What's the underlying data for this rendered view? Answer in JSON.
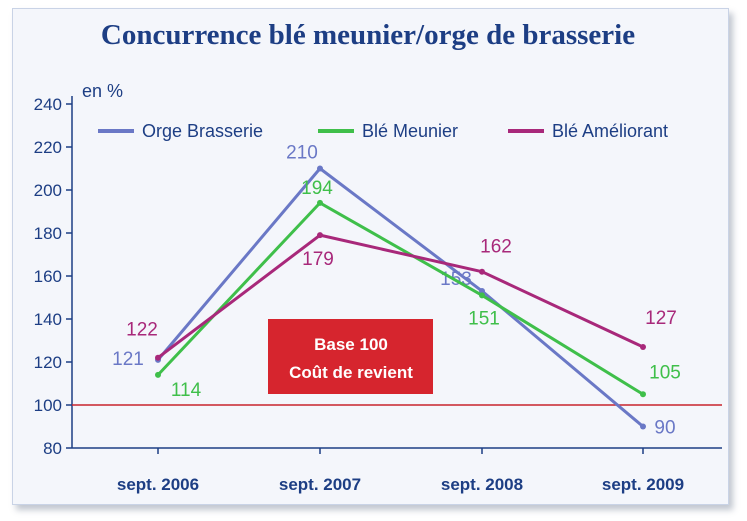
{
  "chart_data": {
    "type": "line",
    "title": "Concurrence blé meunier/orge de brasserie",
    "unit_label": "en %",
    "categories": [
      "sept. 2006",
      "sept. 2007",
      "sept. 2008",
      "sept. 2009"
    ],
    "yticks": [
      80,
      100,
      120,
      140,
      160,
      180,
      200,
      220,
      240
    ],
    "ylim": [
      80,
      240
    ],
    "series": [
      {
        "name": "Orge Brasserie",
        "color": "#6a78c6",
        "values": [
          121,
          210,
          153,
          90
        ]
      },
      {
        "name": "Blé Meunier",
        "color": "#3fbf4a",
        "values": [
          114,
          194,
          151,
          105
        ]
      },
      {
        "name": "Blé Améliorant",
        "color": "#a8287a",
        "values": [
          122,
          179,
          162,
          127
        ]
      }
    ],
    "reference_line": {
      "value": 100,
      "color": "#c8232c"
    },
    "annotation": {
      "lines": [
        "Base 100",
        "Coût de revient"
      ],
      "color": "#d6252e"
    },
    "grid": false,
    "legend_position": "top"
  }
}
